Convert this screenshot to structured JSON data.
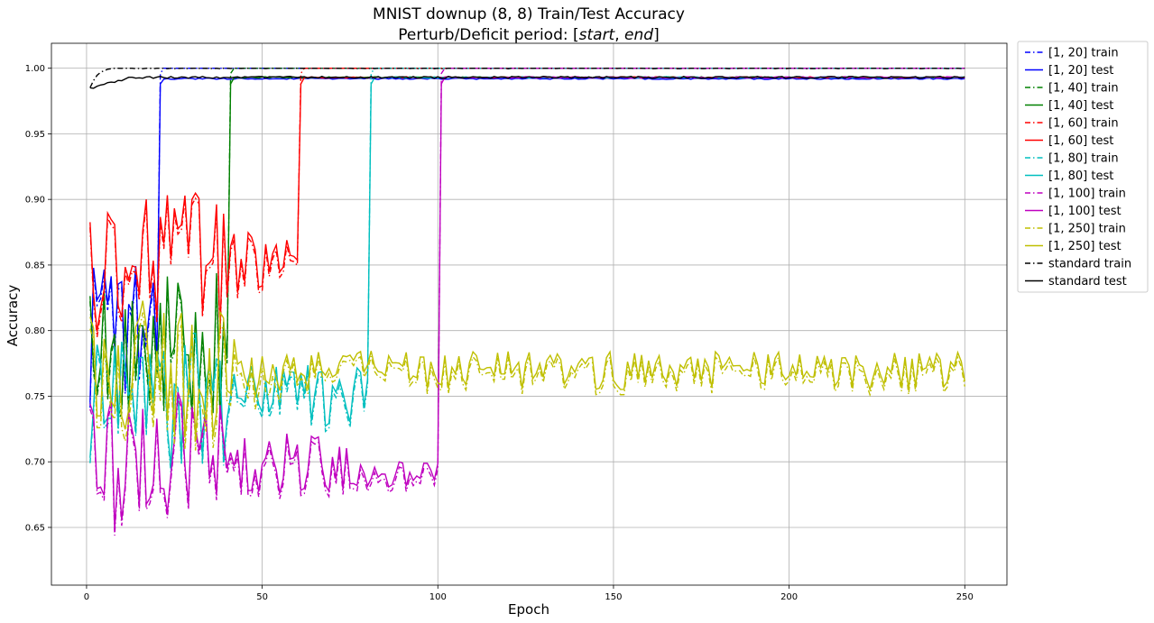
{
  "chart_data": {
    "type": "line",
    "title": "MNIST downup (8, 8) Train/Test Accuracy",
    "subtitle_prefix": "Perturb/Deficit period: [",
    "subtitle_start": "start",
    "subtitle_sep": ", ",
    "subtitle_end": "end",
    "subtitle_suffix": "]",
    "xlabel": "Epoch",
    "ylabel": "Accuracy",
    "xlim": [
      -10,
      262
    ],
    "ylim": [
      0.606,
      1.019
    ],
    "xticks": [
      0,
      50,
      100,
      150,
      200,
      250
    ],
    "yticks": [
      0.65,
      0.7,
      0.75,
      0.8,
      0.85,
      0.9,
      0.95,
      1.0
    ],
    "xtick_labels": [
      "0",
      "50",
      "100",
      "150",
      "200",
      "250"
    ],
    "ytick_labels": [
      "0.65",
      "0.70",
      "0.75",
      "0.80",
      "0.85",
      "0.90",
      "0.95",
      "1.00"
    ],
    "grid": true,
    "legend_position": "outside-right",
    "series": [
      {
        "name": "[1, 20] train",
        "color": "#0000ff",
        "dash": "dashdot",
        "end": 20,
        "pre_level": 0.8,
        "post_final": 1.0,
        "seed": 11
      },
      {
        "name": "[1, 20] test",
        "color": "#0000ff",
        "dash": "solid",
        "end": 20,
        "pre_level": 0.8,
        "post_final": 0.992,
        "seed": 11
      },
      {
        "name": "[1, 40] train",
        "color": "#008000",
        "dash": "dashdot",
        "end": 40,
        "pre_level": 0.79,
        "post_final": 1.0,
        "seed": 23
      },
      {
        "name": "[1, 40] test",
        "color": "#008000",
        "dash": "solid",
        "end": 40,
        "pre_level": 0.79,
        "post_final": 0.993,
        "seed": 23
      },
      {
        "name": "[1, 60] train",
        "color": "#ff0000",
        "dash": "dashdot",
        "end": 60,
        "pre_level": 0.85,
        "post_final": 1.0,
        "seed": 37
      },
      {
        "name": "[1, 60] test",
        "color": "#ff0000",
        "dash": "solid",
        "end": 60,
        "pre_level": 0.85,
        "post_final": 0.993,
        "seed": 37
      },
      {
        "name": "[1, 80] train",
        "color": "#00bfbf",
        "dash": "dashdot",
        "end": 80,
        "pre_level": 0.75,
        "post_final": 1.0,
        "seed": 41
      },
      {
        "name": "[1, 80] test",
        "color": "#00bfbf",
        "dash": "solid",
        "end": 80,
        "pre_level": 0.75,
        "post_final": 0.993,
        "seed": 41
      },
      {
        "name": "[1, 100] train",
        "color": "#bf00bf",
        "dash": "dashdot",
        "end": 100,
        "pre_level": 0.7,
        "post_final": 1.0,
        "seed": 53
      },
      {
        "name": "[1, 100] test",
        "color": "#bf00bf",
        "dash": "solid",
        "end": 100,
        "pre_level": 0.7,
        "post_final": 0.993,
        "seed": 53
      },
      {
        "name": "[1, 250] train",
        "color": "#bfbf00",
        "dash": "dashdot",
        "end": 250,
        "pre_level": 0.765,
        "post_final": 0.765,
        "seed": 67
      },
      {
        "name": "[1, 250] test",
        "color": "#bfbf00",
        "dash": "solid",
        "end": 250,
        "pre_level": 0.77,
        "post_final": 0.77,
        "seed": 67
      },
      {
        "name": "standard train",
        "color": "#000000",
        "dash": "dashdot",
        "end": 0,
        "pre_level": 0.99,
        "post_final": 1.0,
        "seed": 79
      },
      {
        "name": "standard test",
        "color": "#000000",
        "dash": "solid",
        "end": 0,
        "pre_level": 0.99,
        "post_final": 0.995,
        "seed": 79
      }
    ]
  }
}
